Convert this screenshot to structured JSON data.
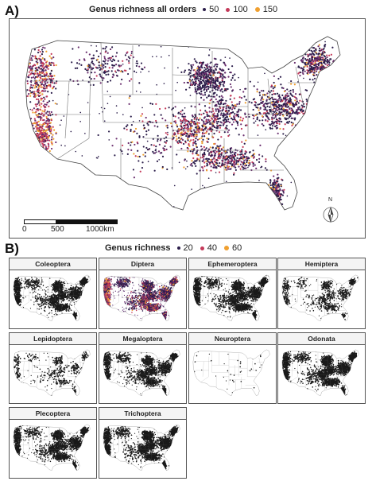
{
  "panel_a": {
    "label": "A)",
    "legend_title": "Genus richness all orders",
    "legend_items": [
      {
        "label": "50",
        "color": "#2b1d4a"
      },
      {
        "label": "100",
        "color": "#c43a5a"
      },
      {
        "label": "150",
        "color": "#f0a030"
      }
    ],
    "scalebar": {
      "labels": [
        "0",
        "500",
        "1000km"
      ]
    },
    "north_arrow_label": "N"
  },
  "panel_b": {
    "label": "B)",
    "legend_title": "Genus richness",
    "legend_items": [
      {
        "label": "20",
        "color": "#2b1d4a"
      },
      {
        "label": "40",
        "color": "#c43a5a"
      },
      {
        "label": "60",
        "color": "#f0a030"
      }
    ],
    "facets": [
      {
        "name": "Coleoptera",
        "density": 0.78,
        "color": "#1a1a1a"
      },
      {
        "name": "Diptera",
        "density": 0.85,
        "color": "#5b2a6e"
      },
      {
        "name": "Ephemeroptera",
        "density": 0.8,
        "color": "#1a1a1a"
      },
      {
        "name": "Hemiptera",
        "density": 0.45,
        "color": "#1a1a1a"
      },
      {
        "name": "Lepidoptera",
        "density": 0.35,
        "color": "#1a1a1a"
      },
      {
        "name": "Megaloptera",
        "density": 0.7,
        "color": "#1a1a1a"
      },
      {
        "name": "Neuroptera",
        "density": 0.08,
        "color": "#1a1a1a"
      },
      {
        "name": "Odonata",
        "density": 0.82,
        "color": "#1a1a1a"
      },
      {
        "name": "Plecoptera",
        "density": 0.75,
        "color": "#1a1a1a"
      },
      {
        "name": "Trichoptera",
        "density": 0.8,
        "color": "#1a1a1a"
      }
    ]
  }
}
